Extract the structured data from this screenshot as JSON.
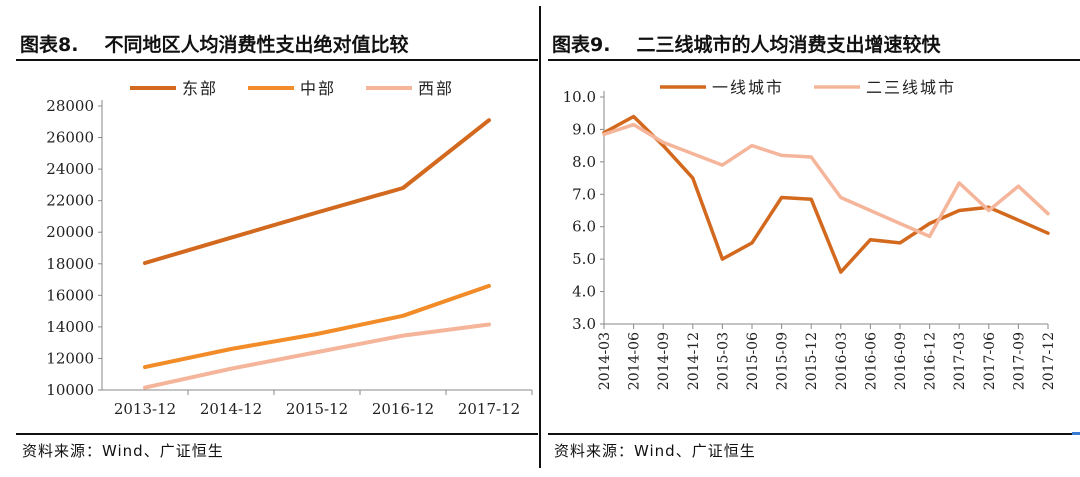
{
  "left": {
    "title_num": "图表8.",
    "title_text": "不同地区人均消费性支出绝对值比较",
    "source": "资料来源：Wind、广证恒生"
  },
  "right": {
    "title_num": "图表9.",
    "title_text": "二三线城市的人均消费支出增速较快",
    "source": "资料来源：Wind、广证恒生"
  },
  "chart_data": [
    {
      "type": "line",
      "title": "不同地区人均消费性支出绝对值比较",
      "categories": [
        "2013-12",
        "2014-12",
        "2015-12",
        "2016-12",
        "2017-12"
      ],
      "series": [
        {
          "name": "东部",
          "color": "#d2691e",
          "values": [
            18050,
            19650,
            21250,
            22800,
            27100
          ]
        },
        {
          "name": "中部",
          "color": "#f28c28",
          "values": [
            11450,
            12600,
            13550,
            14700,
            16600
          ]
        },
        {
          "name": "西部",
          "color": "#f5b59a",
          "values": [
            10150,
            11350,
            12400,
            13450,
            14150
          ]
        }
      ],
      "ylim": [
        10000,
        28000
      ],
      "yticks": [
        10000,
        12000,
        14000,
        16000,
        18000,
        20000,
        22000,
        24000,
        26000,
        28000
      ],
      "legend": "top",
      "grid": false
    },
    {
      "type": "line",
      "title": "二三线城市的人均消费支出增速较快",
      "categories": [
        "2014-03",
        "2014-06",
        "2014-09",
        "2014-12",
        "2015-03",
        "2015-06",
        "2015-09",
        "2015-12",
        "2016-03",
        "2016-06",
        "2016-09",
        "2016-12",
        "2017-03",
        "2017-06",
        "2017-09",
        "2017-12"
      ],
      "series": [
        {
          "name": "一线城市",
          "color": "#d2691e",
          "values": [
            8.9,
            9.4,
            8.5,
            7.5,
            5.0,
            5.5,
            6.9,
            6.85,
            4.6,
            5.6,
            5.5,
            6.1,
            6.5,
            6.6,
            6.2,
            5.8
          ]
        },
        {
          "name": "二三线城市",
          "color": "#f5b59a",
          "values": [
            8.85,
            9.15,
            8.6,
            8.25,
            7.9,
            8.5,
            8.2,
            8.15,
            6.9,
            6.5,
            6.1,
            5.7,
            7.35,
            6.5,
            7.25,
            6.4
          ]
        }
      ],
      "ylim": [
        3.0,
        10.0
      ],
      "yticks": [
        "3.0",
        "4.0",
        "5.0",
        "6.0",
        "7.0",
        "8.0",
        "9.0",
        "10.0"
      ],
      "legend": "top",
      "grid": false
    }
  ]
}
